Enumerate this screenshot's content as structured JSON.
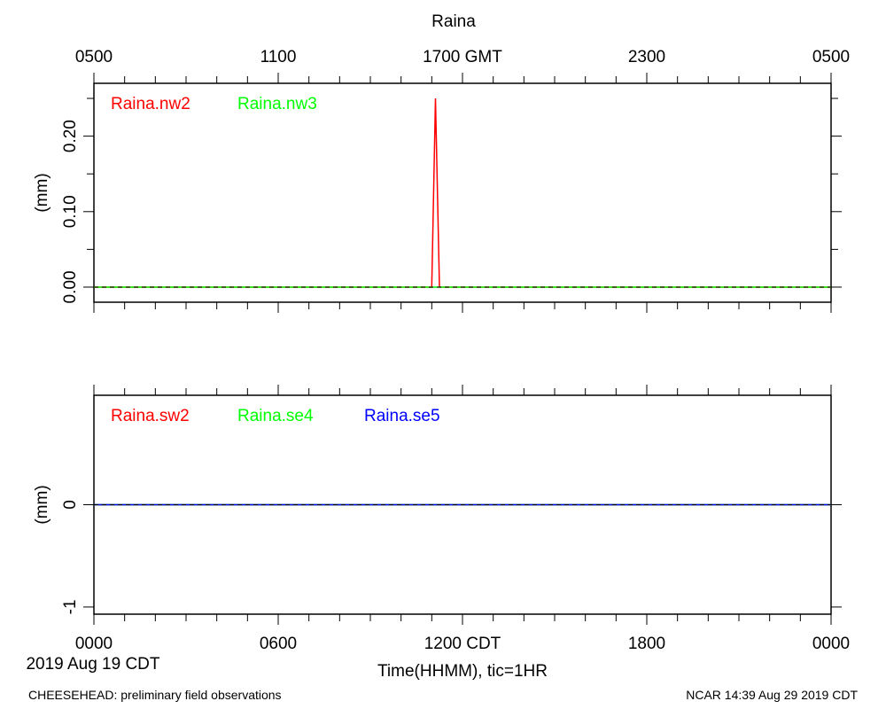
{
  "title": "Raina",
  "top_axis_ticks": [
    "0500",
    "1100",
    "1700 GMT",
    "2300",
    "0500"
  ],
  "bottom_axis_ticks": [
    "0000",
    "0600",
    "1200 CDT",
    "1800",
    "0000"
  ],
  "date_label": "2019 Aug 19 CDT",
  "xlabel": "Time(HHMM), tic=1HR",
  "footer_left": "CHEESEHEAD: preliminary field observations",
  "footer_right": "NCAR 14:39 Aug 29 2019 CDT",
  "chart_data": [
    {
      "type": "line",
      "title": "Raina",
      "ylabel": "(mm)",
      "x_unit": "hours since 0000 CDT 2019 Aug 19",
      "xlim": [
        0,
        24
      ],
      "ylim": [
        -0.02,
        0.27
      ],
      "yticks": [
        0.0,
        0.1,
        0.2
      ],
      "ytick_labels": [
        "0.00",
        "0.10",
        "0.20"
      ],
      "zero_dashed_line": true,
      "series": [
        {
          "name": "Raina.nw2",
          "color": "#ff0000",
          "x": [
            0,
            11.0,
            11.12,
            11.25,
            24
          ],
          "y": [
            0,
            0,
            0.25,
            0,
            0
          ]
        },
        {
          "name": "Raina.nw3",
          "color": "#00ff00",
          "x": [
            0,
            24
          ],
          "y": [
            0,
            0
          ]
        }
      ]
    },
    {
      "type": "line",
      "ylabel": "(mm)",
      "x_unit": "hours since 0000 CDT 2019 Aug 19",
      "xlim": [
        0,
        24
      ],
      "ylim": [
        -1.07,
        1.07
      ],
      "yticks": [
        -1,
        0
      ],
      "ytick_labels": [
        "-1",
        "0"
      ],
      "zero_dashed_line": true,
      "series": [
        {
          "name": "Raina.sw2",
          "color": "#ff0000",
          "x": [
            0,
            24
          ],
          "y": [
            0,
            0
          ]
        },
        {
          "name": "Raina.se4",
          "color": "#00ff00",
          "x": [
            0,
            24
          ],
          "y": [
            0,
            0
          ]
        },
        {
          "name": "Raina.se5",
          "color": "#0000ff",
          "x": [
            0,
            24
          ],
          "y": [
            0,
            0
          ]
        }
      ]
    }
  ]
}
